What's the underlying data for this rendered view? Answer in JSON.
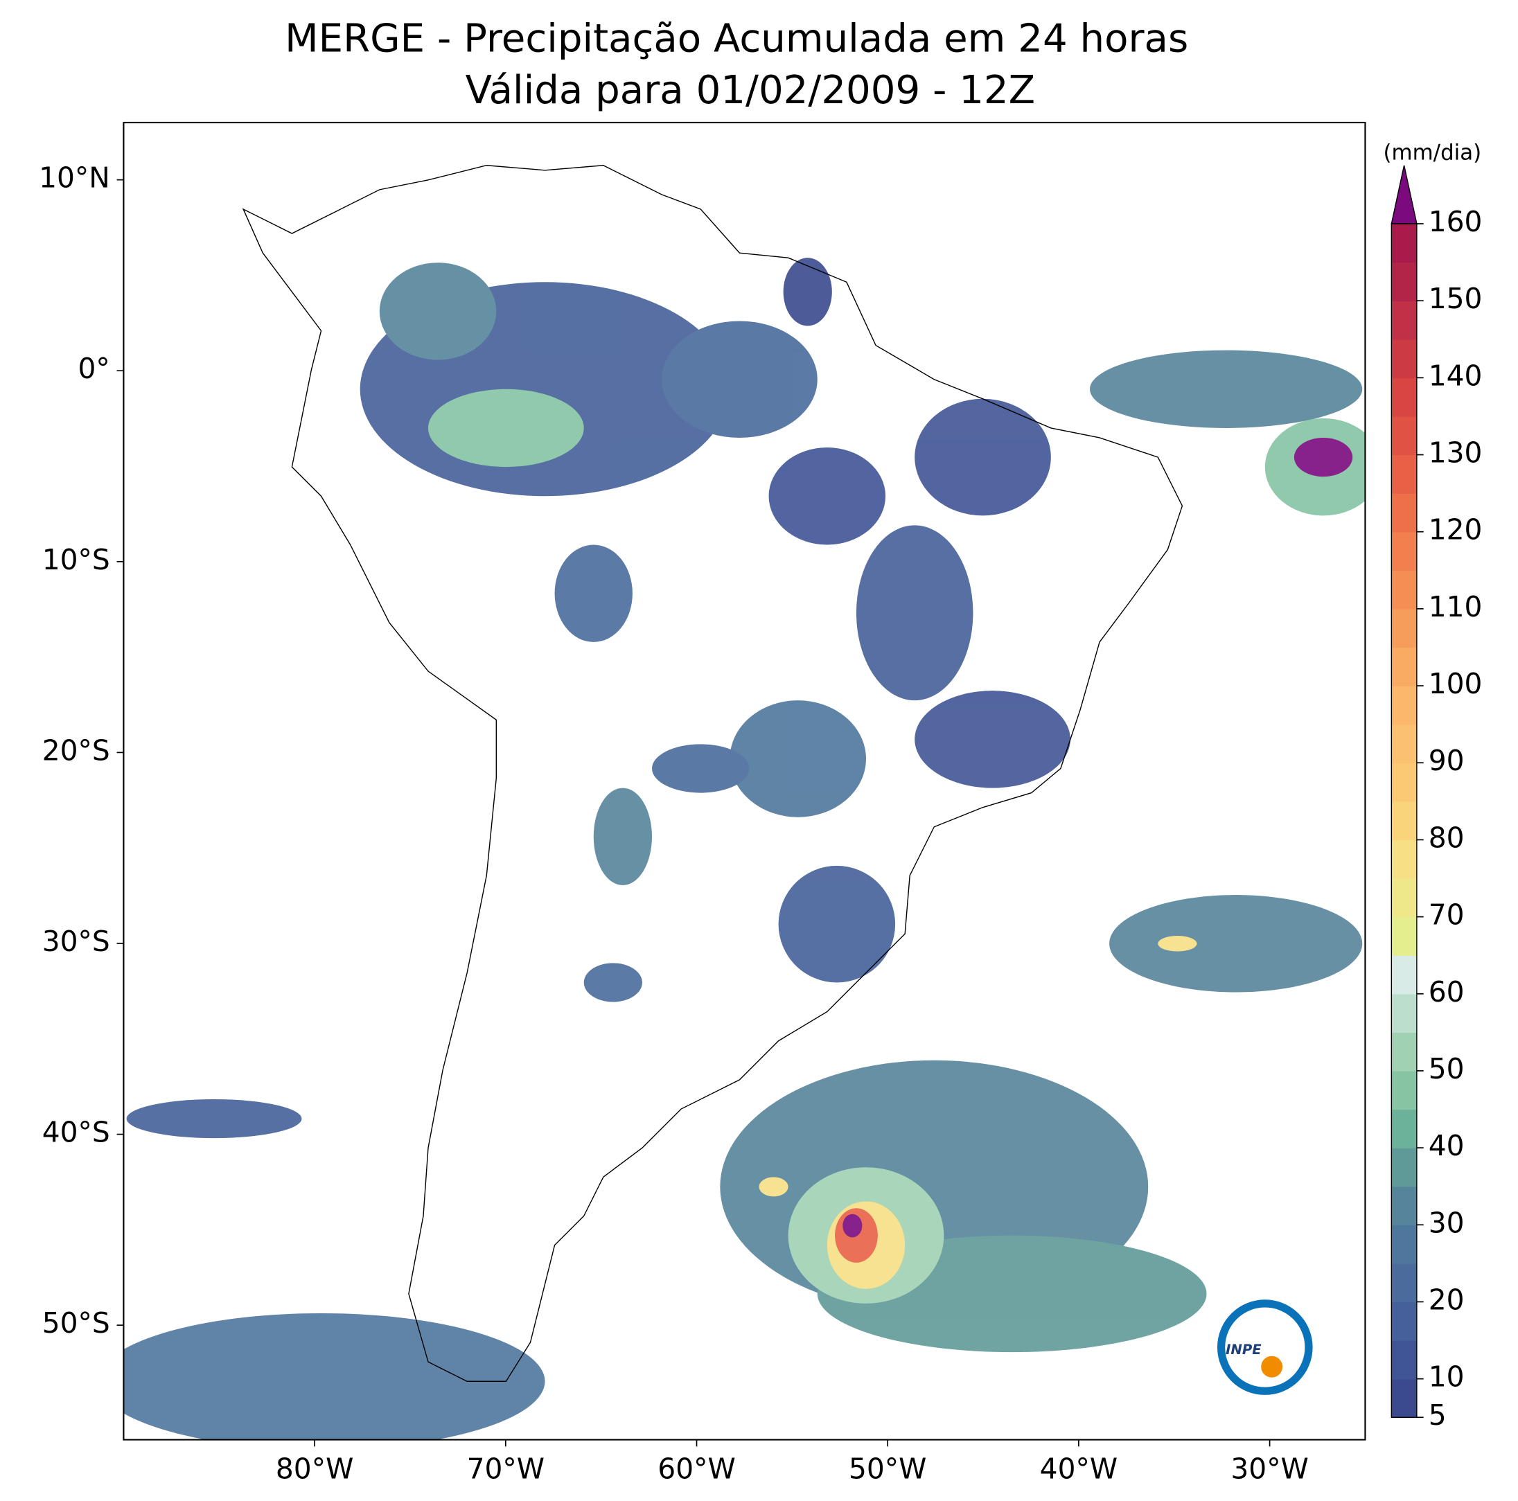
{
  "chart_data": {
    "type": "map",
    "title": "MERGE - Precipitação Acumulada em 24 horas",
    "subtitle": "Válida para 01/02/2009 - 12Z",
    "xlim": [
      -90,
      -25
    ],
    "ylim": [
      -56,
      13
    ],
    "xticks": [
      {
        "value": -80,
        "label": "80°W"
      },
      {
        "value": -70,
        "label": "70°W"
      },
      {
        "value": -60,
        "label": "60°W"
      },
      {
        "value": -50,
        "label": "50°W"
      },
      {
        "value": -40,
        "label": "40°W"
      },
      {
        "value": -30,
        "label": "30°W"
      }
    ],
    "yticks": [
      {
        "value": 10,
        "label": "10°N"
      },
      {
        "value": 0,
        "label": "0°"
      },
      {
        "value": -10,
        "label": "10°S"
      },
      {
        "value": -20,
        "label": "20°S"
      },
      {
        "value": -30,
        "label": "30°S"
      },
      {
        "value": -40,
        "label": "40°S"
      },
      {
        "value": -50,
        "label": "50°S"
      }
    ],
    "colorbar": {
      "label": "(mm/dia)",
      "lim": [
        5,
        160
      ],
      "ticks": [
        5,
        10,
        20,
        30,
        40,
        50,
        60,
        70,
        80,
        90,
        100,
        110,
        120,
        130,
        140,
        150,
        160
      ],
      "levels": [
        5,
        10,
        15,
        20,
        25,
        30,
        35,
        40,
        45,
        50,
        55,
        60,
        65,
        70,
        75,
        80,
        85,
        90,
        95,
        100,
        105,
        110,
        115,
        120,
        125,
        130,
        135,
        140,
        145,
        150,
        155,
        160
      ],
      "colors": [
        "#3b4a8f",
        "#405596",
        "#45609a",
        "#4a6b9c",
        "#4f779d",
        "#56849b",
        "#5f9a98",
        "#6cb19a",
        "#86c4a4",
        "#a0d1b3",
        "#bbdfcc",
        "#d8ebe6",
        "#e4ee8e",
        "#efe88a",
        "#f6df85",
        "#f9d47b",
        "#fbc873",
        "#fbc070",
        "#fbb86a",
        "#f9ab63",
        "#f79d5c",
        "#f58e55",
        "#f27f4e",
        "#ee7049",
        "#e86146",
        "#e05344",
        "#d74643",
        "#cc3a44",
        "#c03046",
        "#b32548",
        "#a81b4a"
      ],
      "extend_color": "#7b0a7f"
    }
  },
  "logo": "INPE"
}
